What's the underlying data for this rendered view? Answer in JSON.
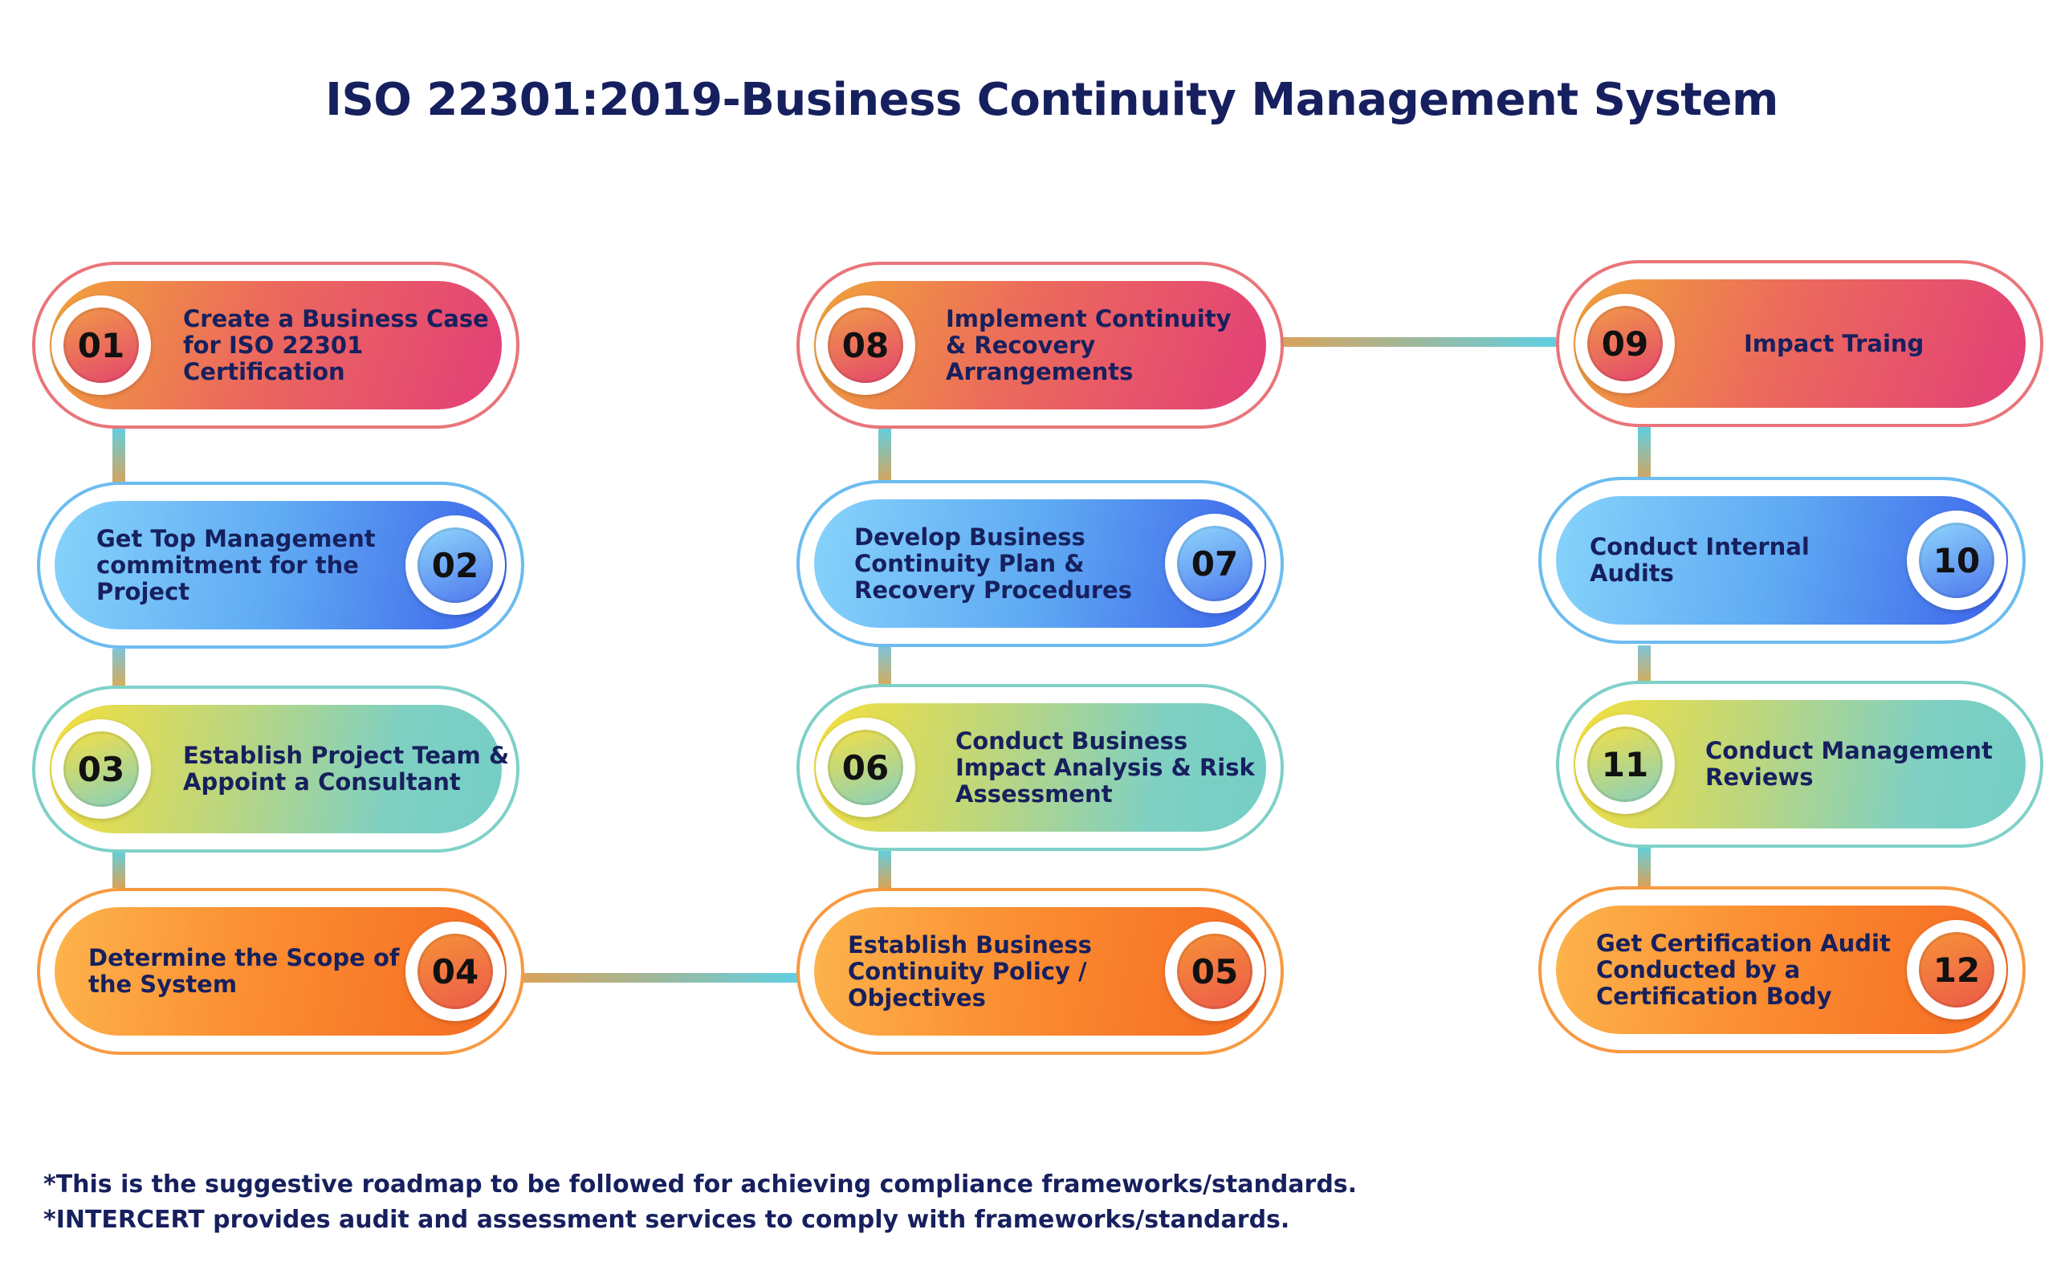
{
  "title": "ISO 22301:2019-Business Continuity Management System",
  "steps": [
    {
      "number": "01",
      "label": "Create a Business Case for ISO 22301 Certification"
    },
    {
      "number": "02",
      "label": "Get Top Management commitment for the Project"
    },
    {
      "number": "03",
      "label": "Establish Project Team & Appoint a Consultant"
    },
    {
      "number": "04",
      "label": "Determine the Scope of the System"
    },
    {
      "number": "05",
      "label": "Establish Business Continuity Policy / Objectives"
    },
    {
      "number": "06",
      "label": "Conduct Business Impact Analysis & Risk Assessment"
    },
    {
      "number": "07",
      "label": "Develop Business Continuity Plan & Recovery Procedures"
    },
    {
      "number": "08",
      "label": "Implement Continuity & Recovery Arrangements"
    },
    {
      "number": "09",
      "label": "Impact Traing"
    },
    {
      "number": "10",
      "label": "Conduct Internal Audits"
    },
    {
      "number": "11",
      "label": "Conduct Management Reviews"
    },
    {
      "number": "12",
      "label": "Get Certification Audit Conducted by a Certification Body"
    }
  ],
  "footnotes": [
    "*This is the suggestive roadmap to be followed for achieving compliance frameworks/standards.",
    "*INTERCERT provides audit and assessment services to comply with frameworks/standards."
  ],
  "colors": {
    "title": "#17205e",
    "pink": "#e23f78",
    "blue": "#3c63ea",
    "teal": "#74cec6",
    "orange": "#f56a22"
  }
}
